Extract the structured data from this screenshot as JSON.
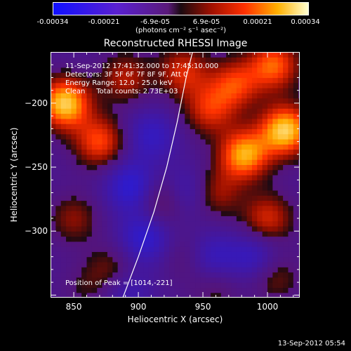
{
  "colorbar": {
    "ticks": [
      "-0.00034",
      "-0.00021",
      "-6.9e-05",
      "6.9e-05",
      "0.00021",
      "0.00034"
    ],
    "unit_text": "(photons cm⁻² s⁻¹ asec⁻²)"
  },
  "info": {
    "time": "11-Sep-2012 17:41:32.000 to 17:45:10.000",
    "detectors": "Detectors: 3F 5F 6F 7F 8F 9F, Att 0",
    "energy": "Energy Range: 12.0 - 25.0 keV",
    "clean": "Clean     Total counts: 2.73E+03",
    "peak": "Position of Peak = [1014,-221]"
  },
  "timestamp": "13-Sep-2012 05:54",
  "chart_data": {
    "type": "heatmap",
    "title": "Reconstructed RHESSI Image",
    "xlabel": "Heliocentric X (arcsec)",
    "ylabel": "Heliocentric Y (arcsec)",
    "xlim": [
      832,
      1025
    ],
    "ylim": [
      -352,
      -160
    ],
    "x_ticks": [
      850,
      900,
      950,
      1000
    ],
    "y_ticks": [
      -200,
      -250,
      -300
    ],
    "value_range": [
      -0.00034,
      0.00034
    ],
    "limb_points": [
      [
        888,
        -352
      ],
      [
        900,
        -320
      ],
      [
        912,
        -285
      ],
      [
        922,
        -250
      ],
      [
        930,
        -215
      ],
      [
        937,
        -180
      ],
      [
        942,
        -160
      ]
    ],
    "bright_sources": [
      {
        "x": 843,
        "y": -200,
        "value": 0.00034
      },
      {
        "x": 1014,
        "y": -221,
        "value": 0.00034
      },
      {
        "x": 982,
        "y": -240,
        "value": 0.0003
      },
      {
        "x": 870,
        "y": -230,
        "value": 0.00022
      },
      {
        "x": 1005,
        "y": -170,
        "value": 0.00024
      },
      {
        "x": 955,
        "y": -205,
        "value": 0.00018
      },
      {
        "x": 975,
        "y": -185,
        "value": 0.0002
      },
      {
        "x": 935,
        "y": -175,
        "value": 0.00018
      },
      {
        "x": 890,
        "y": -180,
        "value": 0.00015
      },
      {
        "x": 920,
        "y": -275,
        "value": 0.00018
      },
      {
        "x": 960,
        "y": -270,
        "value": 0.00014
      },
      {
        "x": 1000,
        "y": -290,
        "value": 0.00018
      },
      {
        "x": 850,
        "y": -290,
        "value": 0.00012
      },
      {
        "x": 880,
        "y": -330,
        "value": 0.00012
      },
      {
        "x": 940,
        "y": -320,
        "value": 0.0001
      },
      {
        "x": 1005,
        "y": -335,
        "value": 0.00012
      },
      {
        "x": 960,
        "y": -345,
        "value": 8e-05
      },
      {
        "x": 860,
        "y": -345,
        "value": 6e-05
      }
    ],
    "dark_regions": [
      {
        "x": 895,
        "y": -265,
        "value": -0.0002
      },
      {
        "x": 905,
        "y": -305,
        "value": -0.00018
      },
      {
        "x": 935,
        "y": -270,
        "value": -0.00016
      },
      {
        "x": 990,
        "y": -320,
        "value": -0.00015
      },
      {
        "x": 955,
        "y": -320,
        "value": -0.00016
      },
      {
        "x": 910,
        "y": -225,
        "value": -0.00014
      },
      {
        "x": 890,
        "y": -345,
        "value": -0.00012
      }
    ]
  }
}
